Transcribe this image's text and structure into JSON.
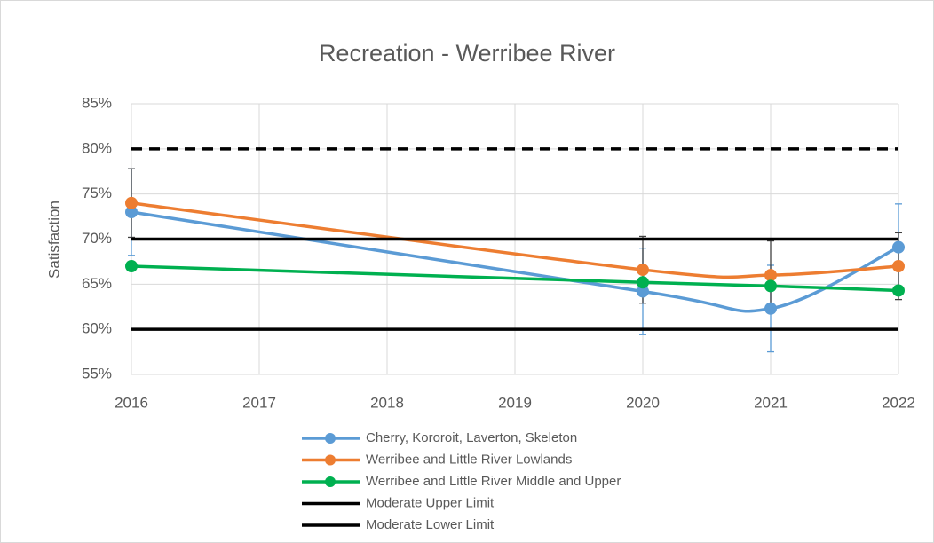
{
  "chart_data": {
    "type": "line",
    "title": "Recreation - Werribee River",
    "y_label": "Satisfaction",
    "xlim": [
      2016,
      2022
    ],
    "xticks": [
      2016,
      2017,
      2018,
      2019,
      2020,
      2021,
      2022
    ],
    "ylim": [
      55,
      85
    ],
    "yticks": [
      {
        "value": 55,
        "label": "55%"
      },
      {
        "value": 60,
        "label": "60%"
      },
      {
        "value": 65,
        "label": "65%"
      },
      {
        "value": 70,
        "label": "70%"
      },
      {
        "value": 75,
        "label": "75%"
      },
      {
        "value": 80,
        "label": "80%"
      },
      {
        "value": 85,
        "label": "85%"
      }
    ],
    "grid": true,
    "legend": "bottom",
    "series": [
      {
        "name": "Cherry, Kororoit, Laverton, Skeleton",
        "color": "#5b9bd5",
        "x": [
          2016,
          2020,
          2021,
          2022
        ],
        "values": [
          73,
          64.2,
          62.3,
          69.1
        ],
        "errors": [
          4.8,
          4.8,
          4.8,
          4.8
        ],
        "error_color": "#5b9bd5",
        "markers": true,
        "smooth": true
      },
      {
        "name": "Werribee and Little River Lowlands",
        "color": "#ed7d31",
        "x": [
          2016,
          2020,
          2021,
          2022
        ],
        "values": [
          74,
          66.6,
          66,
          67
        ],
        "errors": [
          3.8,
          3.7,
          3.8,
          3.7
        ],
        "error_color": "#404040",
        "markers": true,
        "smooth": true
      },
      {
        "name": "Werribee and Little River Middle and Upper",
        "color": "#00b050",
        "x": [
          2016,
          2020,
          2021,
          2022
        ],
        "values": [
          67,
          65.2,
          64.8,
          64.3
        ],
        "markers": true,
        "smooth": true
      },
      {
        "name": "Moderate Upper Limit",
        "color": "#000000",
        "x": [
          2016,
          2022
        ],
        "values": [
          70,
          70
        ],
        "markers": false,
        "smooth": false
      },
      {
        "name": "Moderate Lower Limit",
        "color": "#000000",
        "x": [
          2016,
          2022
        ],
        "values": [
          60,
          60
        ],
        "markers": false,
        "smooth": false
      },
      {
        "color": "#000000",
        "x": [
          2016,
          2022
        ],
        "values": [
          80,
          80
        ],
        "markers": false,
        "smooth": false,
        "dashed": true
      }
    ]
  }
}
